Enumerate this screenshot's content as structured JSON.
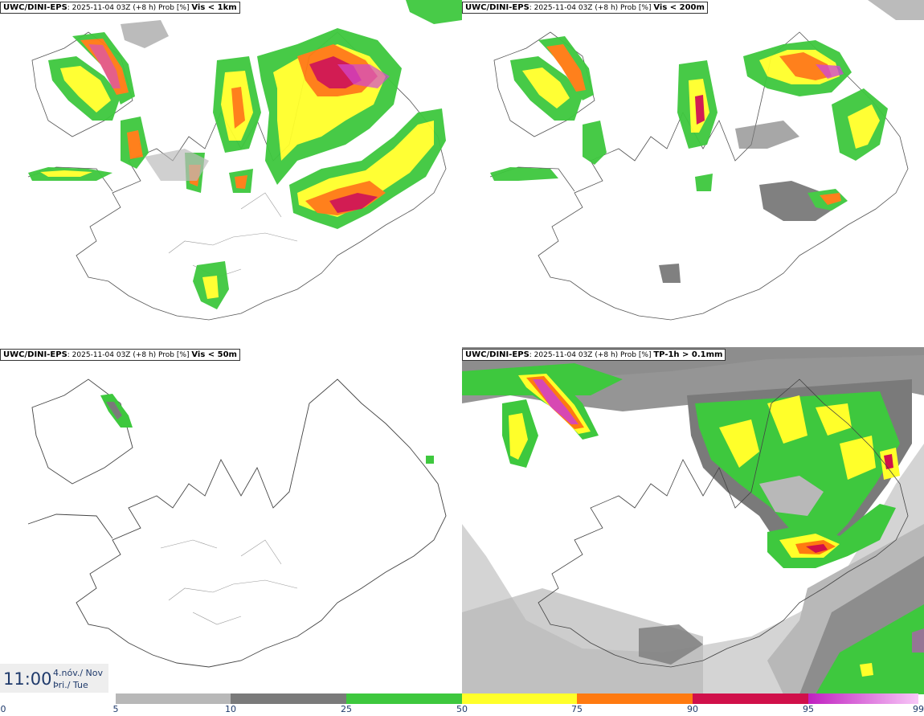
{
  "panels": [
    {
      "model": "UWC/DINI-EPS",
      "info": "2025-11-04 03Z (+8 h) Prob [%]",
      "threshold": "Vis < 1km"
    },
    {
      "model": "UWC/DINI-EPS",
      "info": "2025-11-04 03Z (+8 h) Prob [%]",
      "threshold": "Vis < 200m"
    },
    {
      "model": "UWC/DINI-EPS",
      "info": "2025-11-04 03Z (+8 h) Prob [%]",
      "threshold": "Vis < 50m"
    },
    {
      "model": "UWC/DINI-EPS",
      "info": "2025-11-04 03Z (+8 h) Prob [%]",
      "threshold": "TP-1h > 0.1mm"
    }
  ],
  "time": {
    "clock": "11:00",
    "date": "4.nóv./ Nov",
    "weekday": "Þri./ Tue"
  },
  "colorbar": {
    "ticks": [
      "0",
      "5",
      "10",
      "25",
      "50",
      "75",
      "90",
      "95",
      "99"
    ],
    "colors": [
      "#ffffff",
      "#b8b8b8",
      "#7a7a7a",
      "#3ec83e",
      "#ffff2a",
      "#ff7a10",
      "#d0104a",
      "#d040d0"
    ]
  }
}
